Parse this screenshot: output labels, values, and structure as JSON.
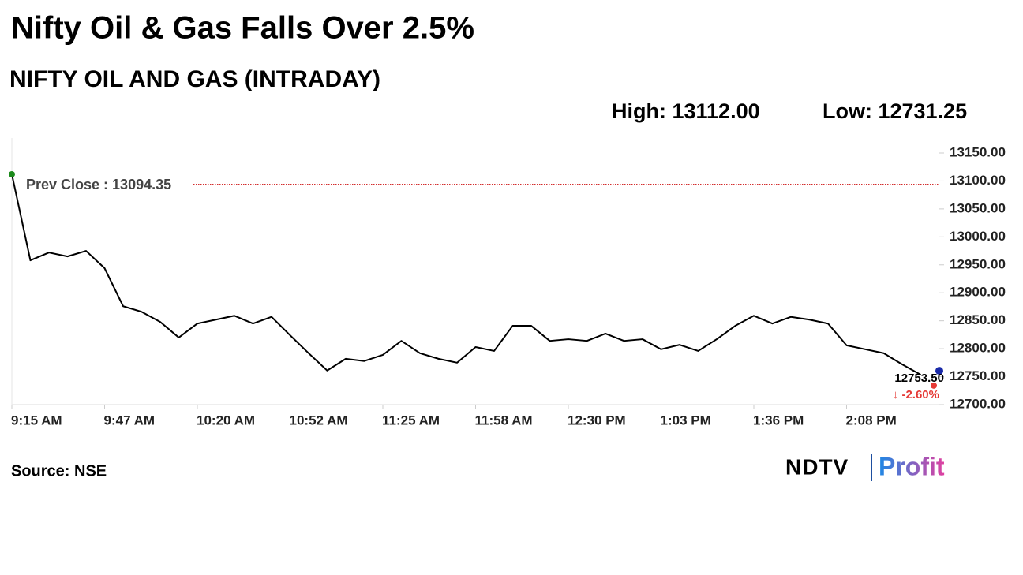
{
  "chart_data": {
    "type": "line",
    "title": "Nifty Oil & Gas Falls Over 2.5%",
    "subtitle": "NIFTY OIL AND GAS (INTRADAY)",
    "high": {
      "value": 13112,
      "label": "High: 13112.00"
    },
    "low": {
      "value": 12731.25,
      "label": "Low: 12731.25"
    },
    "prev_close": {
      "value": 13094.35,
      "label": "Prev Close : 13094.35"
    },
    "last": {
      "value": 12753.5,
      "label": "12753.50"
    },
    "change_label": "↓ -2.60%",
    "source": "Source: NSE",
    "logo": {
      "brand": "NDTV",
      "product": "Profit"
    },
    "categories": [
      "9:15 AM",
      null,
      null,
      null,
      null,
      "9:47 AM",
      null,
      null,
      null,
      null,
      "10:20 AM",
      null,
      null,
      null,
      null,
      "10:52 AM",
      null,
      null,
      null,
      null,
      "11:25 AM",
      null,
      null,
      null,
      null,
      "11:58 AM",
      null,
      null,
      null,
      null,
      "12:30 PM",
      null,
      null,
      null,
      null,
      "1:03 PM",
      null,
      null,
      null,
      null,
      "1:36 PM",
      null,
      null,
      null,
      null,
      "2:08 PM",
      null,
      null,
      null,
      null
    ],
    "series": [
      {
        "color": "#000000",
        "values": [
          13112,
          12958,
          12972,
          12965,
          12975,
          12944,
          12876,
          12866,
          12848,
          12820,
          12845,
          12852,
          12859,
          12845,
          12857,
          12824,
          12792,
          12761,
          12782,
          12778,
          12789,
          12814,
          12792,
          12782,
          12775,
          12803,
          12796,
          12841,
          12841,
          12814,
          12817,
          12814,
          12827,
          12814,
          12817,
          12799,
          12807,
          12796,
          12817,
          12841,
          12859,
          12845,
          12857,
          12852,
          12845,
          12806,
          12799,
          12792,
          12772,
          12753.5
        ]
      }
    ],
    "ylim": [
      12700,
      13150
    ],
    "yticks": [
      {
        "value": 12700,
        "label": "12700.00"
      },
      {
        "value": 12750,
        "label": "12750.00"
      },
      {
        "value": 12800,
        "label": "12800.00"
      },
      {
        "value": 12850,
        "label": "12850.00"
      },
      {
        "value": 12900,
        "label": "12900.00"
      },
      {
        "value": 12950,
        "label": "12950.00"
      },
      {
        "value": 13000,
        "label": "13000.00"
      },
      {
        "value": 13050,
        "label": "13050.00"
      },
      {
        "value": 13100,
        "label": "13100.00"
      },
      {
        "value": 13150,
        "label": "13150.00"
      }
    ],
    "grid": false
  }
}
